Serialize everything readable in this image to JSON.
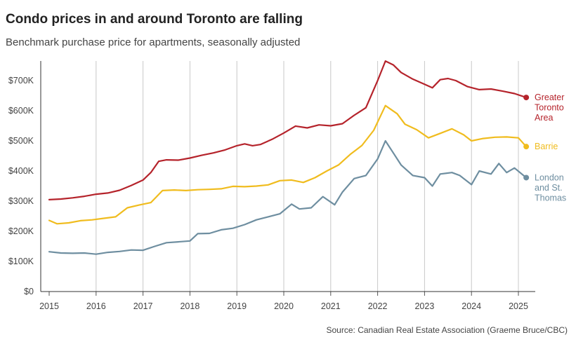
{
  "title": "Condo prices in and around Toronto are falling",
  "subtitle": "Benchmark purchase price for apartments, seasonally adjusted",
  "source": "Source: Canadian Real Estate Association (Graeme Bruce/CBC)",
  "chart_data": {
    "type": "line",
    "title": "Condo prices in and around Toronto are falling",
    "subtitle": "Benchmark purchase price for apartments, seasonally adjusted",
    "xlabel": "",
    "ylabel": "",
    "x_ticks": [
      "2015",
      "2016",
      "2017",
      "2018",
      "2019",
      "2020",
      "2021",
      "2022",
      "2023",
      "2024",
      "2025"
    ],
    "y_ticks": [
      "$0",
      "$100K",
      "$200K",
      "$300K",
      "$400K",
      "$500K",
      "$600K",
      "$700K"
    ],
    "xlim": [
      "2015-01",
      "2025-03"
    ],
    "ylim": [
      0,
      760000
    ],
    "grid": "vertical lines at each year",
    "legend": "direct labels at line ends",
    "series": [
      {
        "name": "Greater Toronto Area",
        "color": "#b5232b",
        "points": [
          [
            "2015-01",
            305000
          ],
          [
            "2015-04",
            307000
          ],
          [
            "2015-07",
            311000
          ],
          [
            "2015-10",
            316000
          ],
          [
            "2016-01",
            323000
          ],
          [
            "2016-04",
            327000
          ],
          [
            "2016-07",
            336000
          ],
          [
            "2016-10",
            352000
          ],
          [
            "2017-01",
            370000
          ],
          [
            "2017-03",
            395000
          ],
          [
            "2017-05",
            432000
          ],
          [
            "2017-07",
            437000
          ],
          [
            "2017-10",
            436000
          ],
          [
            "2018-01",
            443000
          ],
          [
            "2018-04",
            452000
          ],
          [
            "2018-07",
            460000
          ],
          [
            "2018-10",
            470000
          ],
          [
            "2019-01",
            484000
          ],
          [
            "2019-03",
            490000
          ],
          [
            "2019-05",
            484000
          ],
          [
            "2019-07",
            488000
          ],
          [
            "2019-10",
            505000
          ],
          [
            "2020-01",
            526000
          ],
          [
            "2020-04",
            549000
          ],
          [
            "2020-07",
            543000
          ],
          [
            "2020-10",
            553000
          ],
          [
            "2021-01",
            550000
          ],
          [
            "2021-04",
            557000
          ],
          [
            "2021-07",
            585000
          ],
          [
            "2021-10",
            610000
          ],
          [
            "2022-01",
            700000
          ],
          [
            "2022-03",
            765000
          ],
          [
            "2022-05",
            752000
          ],
          [
            "2022-07",
            727000
          ],
          [
            "2022-10",
            705000
          ],
          [
            "2023-01",
            688000
          ],
          [
            "2023-03",
            676000
          ],
          [
            "2023-05",
            703000
          ],
          [
            "2023-07",
            707000
          ],
          [
            "2023-09",
            700000
          ],
          [
            "2023-12",
            680000
          ],
          [
            "2024-03",
            670000
          ],
          [
            "2024-06",
            672000
          ],
          [
            "2024-09",
            665000
          ],
          [
            "2024-12",
            657000
          ],
          [
            "2025-03",
            644000
          ]
        ]
      },
      {
        "name": "Barrie",
        "color": "#f0bc1e",
        "points": [
          [
            "2015-01",
            236000
          ],
          [
            "2015-03",
            225000
          ],
          [
            "2015-06",
            228000
          ],
          [
            "2015-09",
            235000
          ],
          [
            "2015-12",
            238000
          ],
          [
            "2016-03",
            243000
          ],
          [
            "2016-06",
            248000
          ],
          [
            "2016-09",
            278000
          ],
          [
            "2016-12",
            287000
          ],
          [
            "2017-03",
            295000
          ],
          [
            "2017-06",
            335000
          ],
          [
            "2017-09",
            337000
          ],
          [
            "2017-12",
            335000
          ],
          [
            "2018-03",
            338000
          ],
          [
            "2018-06",
            339000
          ],
          [
            "2018-09",
            341000
          ],
          [
            "2018-12",
            349000
          ],
          [
            "2019-03",
            348000
          ],
          [
            "2019-06",
            350000
          ],
          [
            "2019-09",
            354000
          ],
          [
            "2019-12",
            368000
          ],
          [
            "2020-03",
            370000
          ],
          [
            "2020-06",
            362000
          ],
          [
            "2020-09",
            378000
          ],
          [
            "2020-12",
            400000
          ],
          [
            "2021-03",
            420000
          ],
          [
            "2021-06",
            455000
          ],
          [
            "2021-09",
            485000
          ],
          [
            "2021-12",
            535000
          ],
          [
            "2022-03",
            617000
          ],
          [
            "2022-06",
            590000
          ],
          [
            "2022-08",
            555000
          ],
          [
            "2022-11",
            537000
          ],
          [
            "2023-02",
            510000
          ],
          [
            "2023-05",
            525000
          ],
          [
            "2023-08",
            540000
          ],
          [
            "2023-11",
            520000
          ],
          [
            "2024-01",
            500000
          ],
          [
            "2024-04",
            508000
          ],
          [
            "2024-07",
            512000
          ],
          [
            "2024-10",
            513000
          ],
          [
            "2025-01",
            510000
          ],
          [
            "2025-03",
            481000
          ]
        ]
      },
      {
        "name": "London and St. Thomas",
        "color": "#6e8ea0",
        "points": [
          [
            "2015-01",
            132000
          ],
          [
            "2015-04",
            128000
          ],
          [
            "2015-07",
            127000
          ],
          [
            "2015-10",
            128000
          ],
          [
            "2016-01",
            124000
          ],
          [
            "2016-04",
            130000
          ],
          [
            "2016-07",
            133000
          ],
          [
            "2016-10",
            138000
          ],
          [
            "2017-01",
            137000
          ],
          [
            "2017-04",
            150000
          ],
          [
            "2017-07",
            162000
          ],
          [
            "2017-10",
            165000
          ],
          [
            "2018-01",
            168000
          ],
          [
            "2018-03",
            192000
          ],
          [
            "2018-06",
            193000
          ],
          [
            "2018-09",
            205000
          ],
          [
            "2018-12",
            210000
          ],
          [
            "2019-03",
            222000
          ],
          [
            "2019-06",
            238000
          ],
          [
            "2019-09",
            248000
          ],
          [
            "2019-12",
            258000
          ],
          [
            "2020-03",
            290000
          ],
          [
            "2020-05",
            274000
          ],
          [
            "2020-08",
            278000
          ],
          [
            "2020-11",
            315000
          ],
          [
            "2021-02",
            288000
          ],
          [
            "2021-04",
            330000
          ],
          [
            "2021-07",
            375000
          ],
          [
            "2021-10",
            385000
          ],
          [
            "2022-01",
            440000
          ],
          [
            "2022-03",
            500000
          ],
          [
            "2022-05",
            460000
          ],
          [
            "2022-07",
            420000
          ],
          [
            "2022-10",
            385000
          ],
          [
            "2023-01",
            378000
          ],
          [
            "2023-03",
            350000
          ],
          [
            "2023-05",
            390000
          ],
          [
            "2023-08",
            395000
          ],
          [
            "2023-10",
            385000
          ],
          [
            "2024-01",
            355000
          ],
          [
            "2024-03",
            400000
          ],
          [
            "2024-06",
            390000
          ],
          [
            "2024-08",
            425000
          ],
          [
            "2024-10",
            395000
          ],
          [
            "2024-12",
            410000
          ],
          [
            "2025-03",
            378000
          ]
        ]
      }
    ],
    "end_labels": [
      {
        "series": "Greater Toronto Area",
        "lines": [
          "Greater",
          "Toronto",
          "Area"
        ]
      },
      {
        "series": "Barrie",
        "lines": [
          "Barrie"
        ]
      },
      {
        "series": "London and St. Thomas",
        "lines": [
          "London",
          "and St.",
          "Thomas"
        ]
      }
    ]
  }
}
